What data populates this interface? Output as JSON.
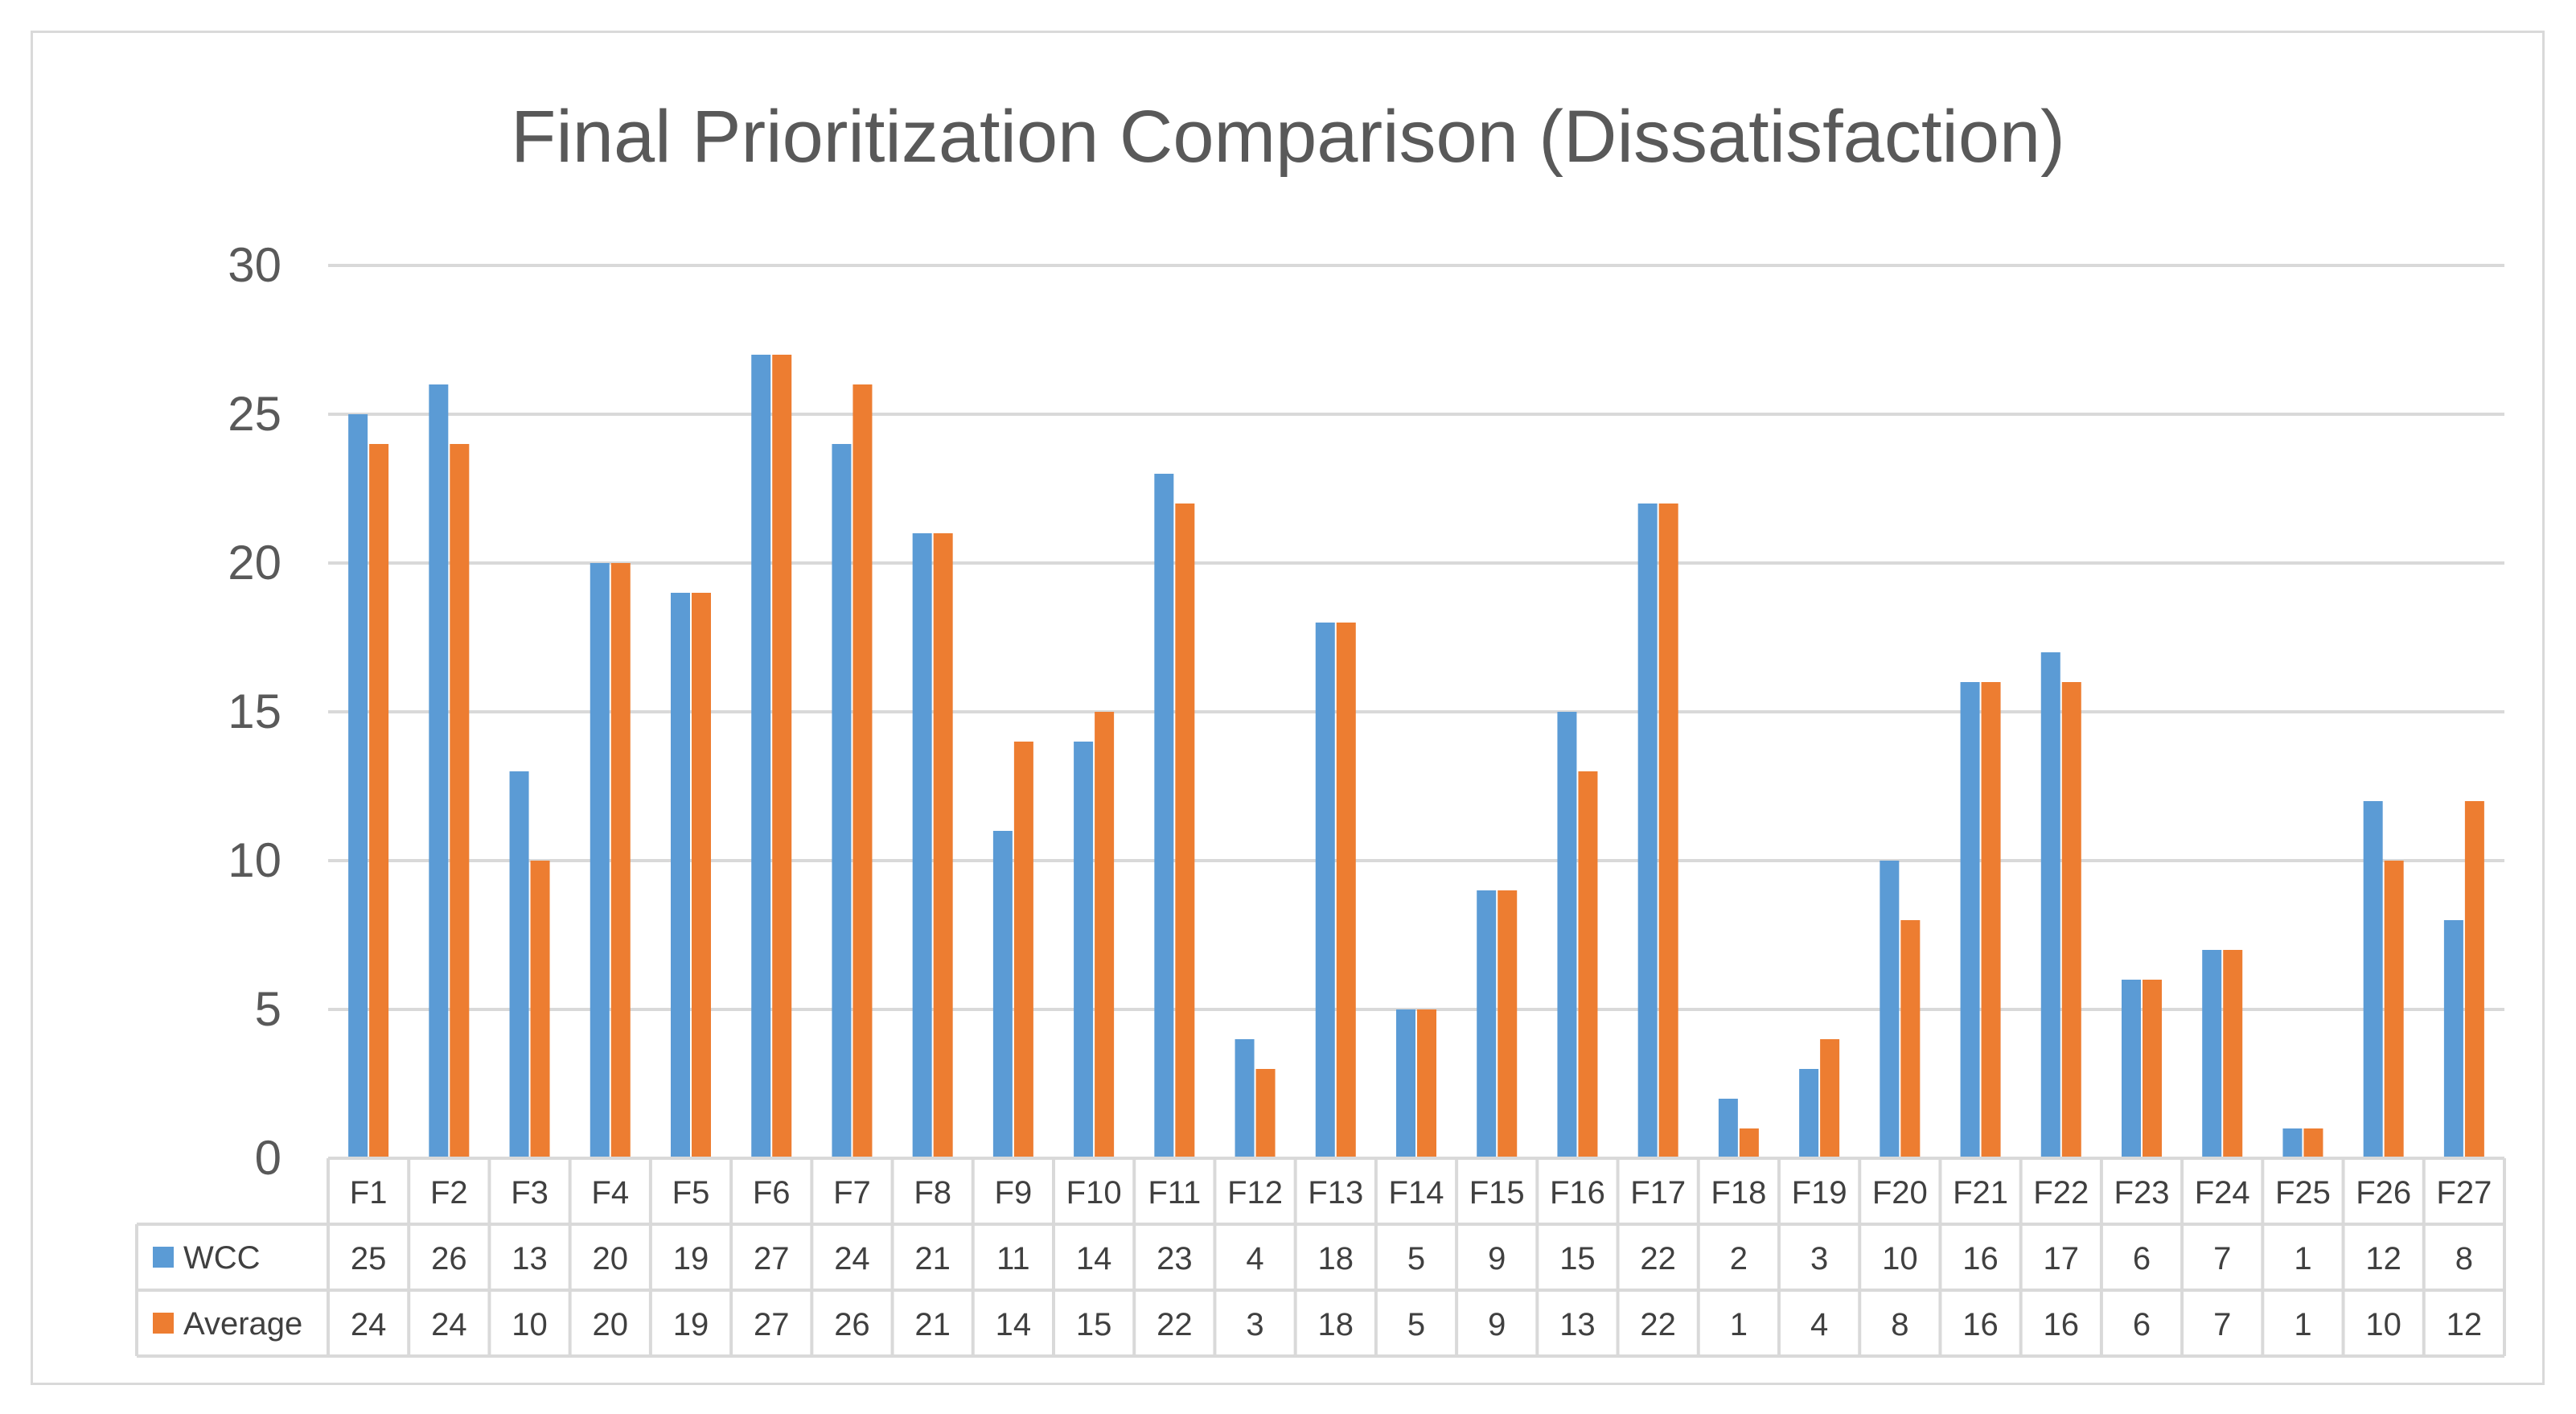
{
  "chart_data": {
    "type": "bar",
    "title": "Final Prioritization Comparison (Dissatisfaction)",
    "xlabel": "",
    "ylabel": "",
    "ylim": [
      0,
      30
    ],
    "yticks": [
      0,
      5,
      10,
      15,
      20,
      25,
      30
    ],
    "grid": true,
    "legend": "data-table",
    "categories": [
      "F1",
      "F2",
      "F3",
      "F4",
      "F5",
      "F6",
      "F7",
      "F8",
      "F9",
      "F10",
      "F11",
      "F12",
      "F13",
      "F14",
      "F15",
      "F16",
      "F17",
      "F18",
      "F19",
      "F20",
      "F21",
      "F22",
      "F23",
      "F24",
      "F25",
      "F26",
      "F27"
    ],
    "series": [
      {
        "name": "WCC",
        "color": "#5B9BD5",
        "values": [
          25,
          26,
          13,
          20,
          19,
          27,
          24,
          21,
          11,
          14,
          23,
          4,
          18,
          5,
          9,
          15,
          22,
          2,
          3,
          10,
          16,
          17,
          6,
          7,
          1,
          12,
          8
        ]
      },
      {
        "name": "Average",
        "color": "#ED7D31",
        "values": [
          24,
          24,
          10,
          20,
          19,
          27,
          26,
          21,
          14,
          15,
          22,
          3,
          18,
          5,
          9,
          13,
          22,
          1,
          4,
          8,
          16,
          16,
          6,
          7,
          1,
          10,
          12
        ]
      }
    ]
  }
}
